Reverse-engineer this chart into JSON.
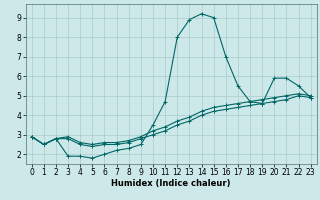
{
  "title": "",
  "xlabel": "Humidex (Indice chaleur)",
  "bg_color": "#cce8e8",
  "grid_color": "#aacccc",
  "line_color": "#006666",
  "xlim": [
    -0.5,
    23.5
  ],
  "ylim": [
    1.5,
    9.7
  ],
  "xticks": [
    0,
    1,
    2,
    3,
    4,
    5,
    6,
    7,
    8,
    9,
    10,
    11,
    12,
    13,
    14,
    15,
    16,
    17,
    18,
    19,
    20,
    21,
    22,
    23
  ],
  "yticks": [
    2,
    3,
    4,
    5,
    6,
    7,
    8,
    9
  ],
  "curves": [
    {
      "x": [
        0,
        1,
        2,
        3,
        4,
        5,
        6,
        7,
        8,
        9,
        10,
        11,
        12,
        13,
        14,
        15,
        16,
        17,
        18,
        19,
        20,
        21,
        22,
        23
      ],
      "y": [
        2.9,
        2.5,
        2.8,
        1.9,
        1.9,
        1.8,
        2.0,
        2.2,
        2.3,
        2.5,
        3.5,
        4.7,
        8.0,
        8.9,
        9.2,
        9.0,
        7.0,
        5.5,
        4.7,
        4.6,
        5.9,
        5.9,
        5.5,
        4.9
      ]
    },
    {
      "x": [
        0,
        1,
        2,
        3,
        4,
        5,
        6,
        7,
        8,
        9,
        10,
        11,
        12,
        13,
        14,
        15,
        16,
        17,
        18,
        19,
        20,
        21,
        22,
        23
      ],
      "y": [
        2.9,
        2.5,
        2.8,
        2.9,
        2.6,
        2.5,
        2.6,
        2.6,
        2.7,
        2.9,
        3.2,
        3.4,
        3.7,
        3.9,
        4.2,
        4.4,
        4.5,
        4.6,
        4.7,
        4.8,
        4.9,
        5.0,
        5.1,
        5.0
      ]
    },
    {
      "x": [
        0,
        1,
        2,
        3,
        4,
        5,
        6,
        7,
        8,
        9,
        10,
        11,
        12,
        13,
        14,
        15,
        16,
        17,
        18,
        19,
        20,
        21,
        22,
        23
      ],
      "y": [
        2.9,
        2.5,
        2.8,
        2.8,
        2.5,
        2.4,
        2.5,
        2.5,
        2.6,
        2.8,
        3.0,
        3.2,
        3.5,
        3.7,
        4.0,
        4.2,
        4.3,
        4.4,
        4.5,
        4.6,
        4.7,
        4.8,
        5.0,
        4.9
      ]
    }
  ]
}
